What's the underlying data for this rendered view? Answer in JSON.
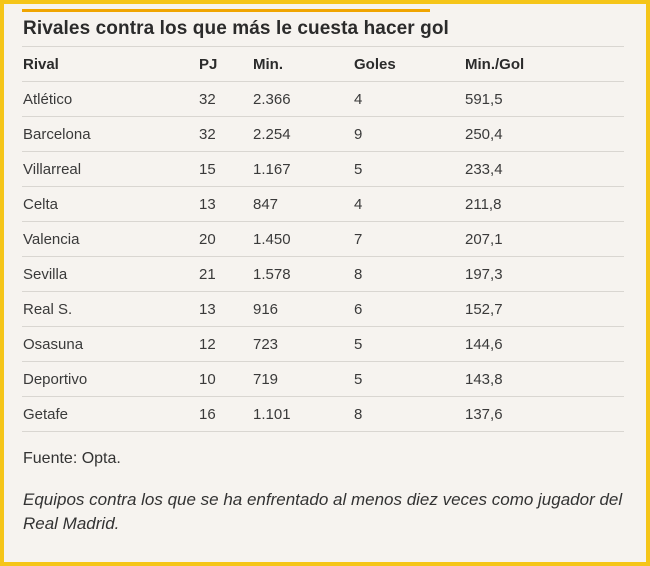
{
  "title": "Rivales contra los que más le cuesta hacer gol",
  "colors": {
    "border": "#f5c518",
    "accent": "#f0a500",
    "background": "#f6f3ef"
  },
  "table": {
    "headers": [
      "Rival",
      "PJ",
      "Min.",
      "Goles",
      "Min./Gol"
    ],
    "rows": [
      [
        "Atlético",
        "32",
        "2.366",
        "4",
        "591,5"
      ],
      [
        "Barcelona",
        "32",
        "2.254",
        "9",
        "250,4"
      ],
      [
        "Villarreal",
        "15",
        "1.167",
        "5",
        "233,4"
      ],
      [
        "Celta",
        "13",
        "847",
        "4",
        "211,8"
      ],
      [
        "Valencia",
        "20",
        "1.450",
        "7",
        "207,1"
      ],
      [
        "Sevilla",
        "21",
        "1.578",
        "8",
        "197,3"
      ],
      [
        "Real S.",
        "13",
        "916",
        "6",
        "152,7"
      ],
      [
        "Osasuna",
        "12",
        "723",
        "5",
        "144,6"
      ],
      [
        "Deportivo",
        "10",
        "719",
        "5",
        "143,8"
      ],
      [
        "Getafe",
        "16",
        "1.101",
        "8",
        "137,6"
      ]
    ]
  },
  "source": "Fuente: Opta.",
  "note": "Equipos contra los que se ha enfrentado al menos diez veces como jugador del Real Madrid."
}
